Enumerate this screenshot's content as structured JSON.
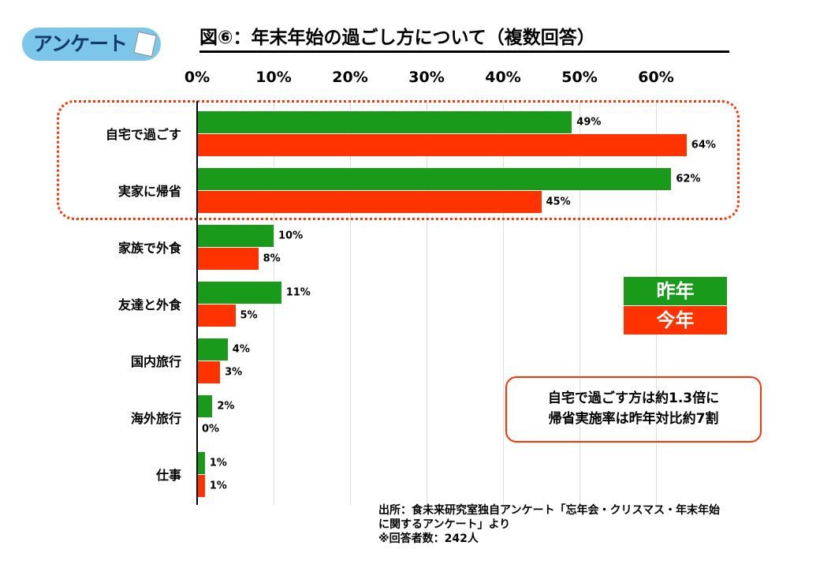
{
  "logo": {
    "text": "アンケート"
  },
  "chart_data": {
    "type": "bar",
    "orientation": "horizontal",
    "title": "図⑥：年末年始の過ごし方について（複数回答）",
    "xticks": [
      "0%",
      "10%",
      "20%",
      "30%",
      "40%",
      "50%",
      "60%"
    ],
    "xlim": [
      0,
      65
    ],
    "categories": [
      "自宅で過ごす",
      "実家に帰省",
      "家族で外食",
      "友達と外食",
      "国内旅行",
      "海外旅行",
      "仕事"
    ],
    "series": [
      {
        "name": "昨年",
        "color": "#1a9a1a",
        "values": [
          49,
          62,
          10,
          11,
          4,
          2,
          1
        ],
        "labels": [
          "49%",
          "62%",
          "10%",
          "11%",
          "4%",
          "2%",
          "1%"
        ]
      },
      {
        "name": "今年",
        "color": "#ff3300",
        "values": [
          64,
          45,
          8,
          5,
          3,
          0,
          1
        ],
        "labels": [
          "64%",
          "45%",
          "8%",
          "5%",
          "3%",
          "0%",
          "1%"
        ]
      }
    ],
    "legend": "right",
    "highlight_categories": [
      "自宅で過ごす",
      "実家に帰省"
    ]
  },
  "callout": {
    "line1": "自宅で過ごす方は約1.3倍に",
    "line2": "帰省実施率は昨年対比約7割"
  },
  "source": {
    "line1": "出所：食未来研究室独自アンケート「忘年会・クリスマス・年末年始",
    "line2": "に関するアンケート」より",
    "line3": "※回答者数：242人"
  }
}
